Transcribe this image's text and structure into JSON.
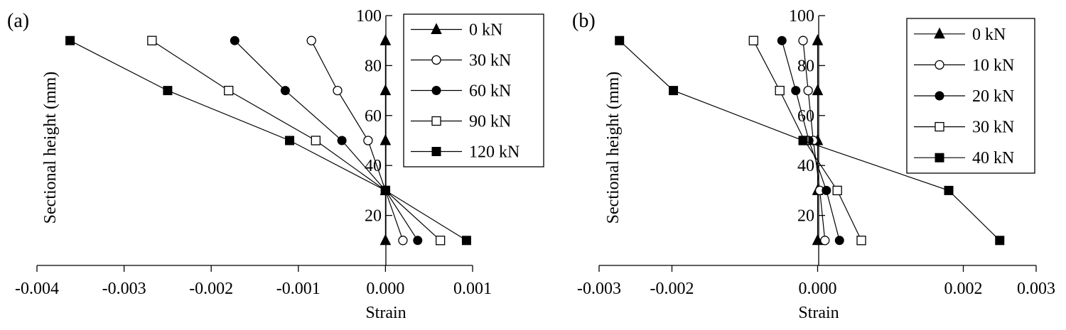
{
  "chart_data": [
    {
      "type": "line",
      "panel_label": "(a)",
      "xlabel": "Strain",
      "ylabel": "Sectional height (mm)",
      "xlim": [
        -0.004,
        0.001
      ],
      "ylim": [
        0,
        100
      ],
      "x_ticks": [
        -0.004,
        -0.003,
        -0.002,
        -0.001,
        0.0,
        0.001
      ],
      "x_tick_labels": [
        "-0.004",
        "-0.003",
        "-0.002",
        "-0.001",
        "0.000",
        "0.001"
      ],
      "y_ticks": [
        20,
        40,
        60,
        80,
        100
      ],
      "y_tick_labels": [
        "20",
        "40",
        "60",
        "80",
        "100"
      ],
      "legend_position": "top-right",
      "series": [
        {
          "name": "0 kN",
          "marker": "triangle-filled",
          "points": [
            [
              0.0,
              10
            ],
            [
              0.0,
              30
            ],
            [
              0.0,
              50
            ],
            [
              0.0,
              70
            ],
            [
              0.0,
              90
            ]
          ]
        },
        {
          "name": "30 kN",
          "marker": "circle-open",
          "points": [
            [
              0.0002,
              10
            ],
            [
              0.0,
              30
            ],
            [
              -0.0002,
              50
            ],
            [
              -0.00055,
              70
            ],
            [
              -0.00085,
              90
            ]
          ]
        },
        {
          "name": "60 kN",
          "marker": "circle-filled",
          "points": [
            [
              0.00037,
              10
            ],
            [
              0.0,
              30
            ],
            [
              -0.0005,
              50
            ],
            [
              -0.00115,
              70
            ],
            [
              -0.00173,
              90
            ]
          ]
        },
        {
          "name": "90 kN",
          "marker": "square-open",
          "points": [
            [
              0.00063,
              10
            ],
            [
              0.0,
              30
            ],
            [
              -0.0008,
              50
            ],
            [
              -0.0018,
              70
            ],
            [
              -0.00268,
              90
            ]
          ]
        },
        {
          "name": "120 kN",
          "marker": "square-filled",
          "points": [
            [
              0.00093,
              10
            ],
            [
              0.0,
              30
            ],
            [
              -0.0011,
              50
            ],
            [
              -0.0025,
              70
            ],
            [
              -0.00362,
              90
            ]
          ]
        }
      ]
    },
    {
      "type": "line",
      "panel_label": "(b)",
      "xlabel": "Strain",
      "ylabel": "Sectional height (mm)",
      "xlim": [
        -0.003,
        0.003
      ],
      "ylim": [
        0,
        100
      ],
      "x_ticks": [
        -0.003,
        -0.002,
        0.0,
        0.002,
        0.003
      ],
      "x_tick_labels": [
        "-0.003",
        "-0.002",
        "0.000",
        "0.002",
        "0.003"
      ],
      "y_ticks": [
        20,
        40,
        60,
        80,
        100
      ],
      "y_tick_labels": [
        "20",
        "40",
        "60",
        "80",
        "100"
      ],
      "legend_position": "top-right",
      "series": [
        {
          "name": "0 kN",
          "marker": "triangle-filled",
          "points": [
            [
              0.0,
              10
            ],
            [
              0.0,
              30
            ],
            [
              0.0,
              50
            ],
            [
              0.0,
              70
            ],
            [
              0.0,
              90
            ]
          ]
        },
        {
          "name": "10 kN",
          "marker": "circle-open",
          "points": [
            [
              0.0001,
              10
            ],
            [
              3e-05,
              30
            ],
            [
              -6e-05,
              50
            ],
            [
              -0.00013,
              70
            ],
            [
              -0.0002,
              90
            ]
          ]
        },
        {
          "name": "20 kN",
          "marker": "circle-filled",
          "points": [
            [
              0.0003,
              10
            ],
            [
              0.00012,
              30
            ],
            [
              -0.00012,
              50
            ],
            [
              -0.0003,
              70
            ],
            [
              -0.00049,
              90
            ]
          ]
        },
        {
          "name": "30 kN",
          "marker": "square-open",
          "points": [
            [
              0.0006,
              10
            ],
            [
              0.00027,
              30
            ],
            [
              -0.00018,
              50
            ],
            [
              -0.00052,
              70
            ],
            [
              -0.00088,
              90
            ]
          ]
        },
        {
          "name": "40 kN",
          "marker": "square-filled",
          "points": [
            [
              0.0025,
              10
            ],
            [
              0.0018,
              30
            ],
            [
              -0.0002,
              50
            ],
            [
              -0.00198,
              70
            ],
            [
              -0.00272,
              90
            ]
          ]
        }
      ]
    }
  ]
}
